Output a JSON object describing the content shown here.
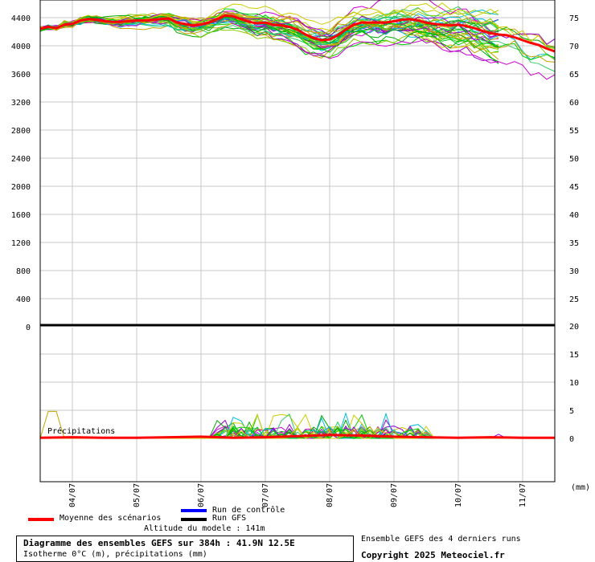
{
  "chart_data": [
    {
      "type": "line",
      "title": "",
      "ylabel_left": "",
      "ylabel_right": "",
      "ylim_left": [
        0,
        4700
      ],
      "ylim_right": [
        20,
        78
      ],
      "left_ticks": [
        "0",
        "400",
        "800",
        "1200",
        "1600",
        "2000",
        "2400",
        "2800",
        "3200",
        "3600",
        "4000",
        "4400"
      ],
      "right_ticks": [
        "25",
        "30",
        "35",
        "40",
        "45",
        "50",
        "55",
        "60",
        "65",
        "70",
        "75"
      ],
      "x_ticks": [
        "04/07",
        "05/07",
        "06/07",
        "07/07",
        "08/07",
        "09/07",
        "10/07",
        "11/07"
      ],
      "grid": true,
      "series": [
        {
          "name": "Moyenne des scénarios",
          "color": "#ff0000",
          "x_hours": [
            0,
            6,
            12,
            18,
            24,
            30,
            36,
            42,
            48,
            54,
            60,
            66,
            72,
            78,
            84,
            90,
            96,
            102,
            108,
            114,
            120,
            126,
            132,
            138,
            144,
            150,
            156,
            162,
            168,
            174,
            180,
            186,
            192,
            198,
            204,
            210,
            216,
            222,
            228,
            234,
            240,
            246,
            252,
            258,
            264,
            270,
            276,
            282,
            288,
            294,
            300,
            306,
            312,
            318,
            324,
            330,
            336,
            342,
            348,
            354,
            360,
            366,
            372,
            378,
            384
          ],
          "values": [
            4240,
            4270,
            4250,
            4300,
            4310,
            4360,
            4380,
            4370,
            4350,
            4340,
            4340,
            4350,
            4360,
            4360,
            4370,
            4380,
            4390,
            4330,
            4310,
            4290,
            4300,
            4330,
            4380,
            4430,
            4420,
            4380,
            4340,
            4320,
            4330,
            4300,
            4290,
            4270,
            4230,
            4160,
            4110,
            4080,
            4090,
            4150,
            4230,
            4300,
            4330,
            4330,
            4330,
            4330,
            4350,
            4370,
            4380,
            4360,
            4330,
            4310,
            4300,
            4290,
            4300,
            4280,
            4250,
            4210,
            4180,
            4160,
            4150,
            4120,
            4080,
            4040,
            4010,
            3960,
            3920
          ]
        }
      ]
    },
    {
      "type": "line",
      "title": "Précipitations",
      "ylim": [
        -8,
        20
      ],
      "right_ticks": [
        "0",
        "5",
        "10",
        "15",
        "20"
      ],
      "unit": "(mm)",
      "series": [
        {
          "name": "Moyenne des scénarios",
          "color": "#ff0000",
          "x_hours": [
            0,
            24,
            48,
            72,
            96,
            120,
            144,
            168,
            192,
            216,
            240,
            264,
            288,
            312,
            336,
            360,
            384
          ],
          "values": [
            0.1,
            0.2,
            0.1,
            0.1,
            0.2,
            0.3,
            0.1,
            0.2,
            0.4,
            0.6,
            0.5,
            0.3,
            0.2,
            0.1,
            0.2,
            0.1,
            0.1
          ]
        }
      ]
    }
  ],
  "legend": {
    "mean": "Moyenne des scénarios",
    "control": "Run de contrôle",
    "gfs": "Run GFS",
    "altitude": "Altitude du modele : 141m",
    "mean_color": "#ff0000",
    "control_color": "#0000ff",
    "gfs_color": "#000000"
  },
  "footer": {
    "title": "Diagramme des ensembles GEFS sur 384h : 41.9N 12.5E",
    "subtitle": "Isotherme 0°C (m), précipitations (mm)",
    "note": "Ensemble GEFS des 4 derniers runs",
    "copyright": "Copyright 2025 Meteociel.fr"
  }
}
